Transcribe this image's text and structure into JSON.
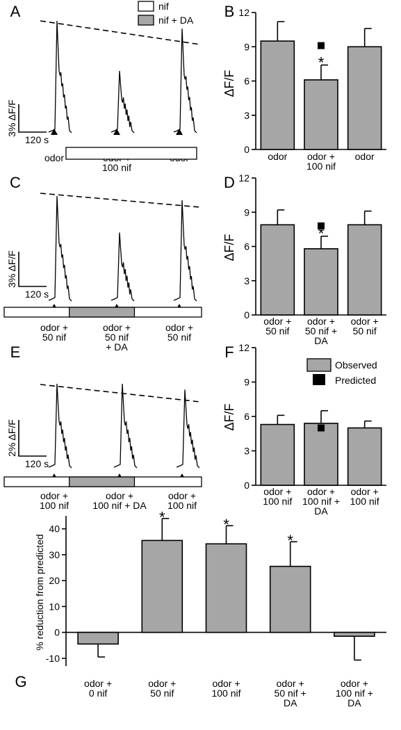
{
  "colors": {
    "bar": "#a6a6a6",
    "axis": "#000000",
    "treatment_fill": "#a6a6a6",
    "predicted": "#000000"
  },
  "legend": {
    "plain_label": "nif",
    "treated_label": "nif + DA"
  },
  "traces": [
    {
      "panel_letter": "A",
      "scale_y": "3% ΔF/F",
      "scale_x": "120 s",
      "labels": [
        [
          "odor"
        ],
        [
          "odor +",
          "100 nif"
        ],
        [
          "odor"
        ]
      ],
      "peaks": [
        100,
        55,
        93
      ],
      "treatment_bar": {
        "kind": "white",
        "spans": "middle"
      }
    },
    {
      "panel_letter": "C",
      "scale_y": "3% ΔF/F",
      "scale_x": "120 s",
      "labels": [
        [
          "odor +",
          "50 nif"
        ],
        [
          "odor +",
          "50 nif",
          "+ DA"
        ],
        [
          "odor +",
          "50 nif"
        ]
      ],
      "peaks": [
        100,
        65,
        96
      ],
      "treatment_bar": {
        "kind": "white-grey-white",
        "spans": "full"
      }
    },
    {
      "panel_letter": "E",
      "scale_y": "2% ΔF/F",
      "scale_x": "120 s",
      "labels": [
        [
          "odor +",
          "100 nif"
        ],
        [
          "odor +",
          "100 nif + DA"
        ],
        [
          "odor +",
          "100 nif"
        ]
      ],
      "peaks": [
        100,
        100,
        93
      ],
      "treatment_bar": {
        "kind": "white-grey-white",
        "spans": "full"
      }
    }
  ],
  "chart_data": [
    {
      "panel_letter": "B",
      "type": "bar",
      "ylabel": "ΔF/F",
      "ylim": [
        0,
        12
      ],
      "yticks": [
        "0",
        "3",
        "6",
        "9",
        "12"
      ],
      "categories": [
        [
          "odor"
        ],
        [
          "odor +",
          "100 nif"
        ],
        [
          "odor"
        ]
      ],
      "values": [
        9.5,
        6.1,
        9.0
      ],
      "errors": [
        1.7,
        1.3,
        1.6
      ],
      "significance": [
        "",
        "*",
        ""
      ],
      "predicted": [
        null,
        9.1,
        null
      ],
      "legend": null
    },
    {
      "panel_letter": "D",
      "type": "bar",
      "ylabel": "ΔF/F",
      "ylim": [
        0,
        12
      ],
      "yticks": [
        "0",
        "3",
        "6",
        "9",
        "12"
      ],
      "categories": [
        [
          "odor +",
          "50 nif"
        ],
        [
          "odor +",
          "50 nif +",
          "DA"
        ],
        [
          "odor +",
          "50 nif"
        ]
      ],
      "values": [
        7.9,
        5.8,
        7.9
      ],
      "errors": [
        1.3,
        1.1,
        1.2
      ],
      "significance": [
        "",
        "*",
        ""
      ],
      "predicted": [
        null,
        7.8,
        null
      ],
      "legend": null
    },
    {
      "panel_letter": "F",
      "type": "bar",
      "ylabel": "ΔF/F",
      "ylim": [
        0,
        12
      ],
      "yticks": [
        "0",
        "3",
        "6",
        "9",
        "12"
      ],
      "categories": [
        [
          "odor +",
          "100 nif"
        ],
        [
          "odor +",
          "100 nif +",
          "DA"
        ],
        [
          "odor +",
          "100 nif"
        ]
      ],
      "values": [
        5.3,
        5.4,
        5.0
      ],
      "errors": [
        0.8,
        1.1,
        0.6
      ],
      "significance": [
        "",
        "",
        ""
      ],
      "predicted": [
        null,
        5.0,
        null
      ],
      "legend": {
        "observed": "Observed",
        "predicted": "Predicted"
      }
    },
    {
      "panel_letter": "G",
      "type": "bar",
      "ylabel": "% reduction from predicted",
      "ylim": [
        -13,
        45
      ],
      "yticks": [
        "-10",
        "0",
        "10",
        "20",
        "30",
        "40"
      ],
      "categories": [
        [
          "odor +",
          "0 nif"
        ],
        [
          "odor +",
          "50 nif"
        ],
        [
          "odor +",
          "100 nif"
        ],
        [
          "odor +",
          "50 nif +",
          "DA"
        ],
        [
          "odor +",
          "100 nif +",
          "DA"
        ]
      ],
      "values": [
        -4.5,
        35.5,
        34.2,
        25.5,
        -1.5
      ],
      "errors": [
        5.0,
        8.5,
        7.0,
        9.5,
        9.2
      ],
      "significance": [
        "",
        "*",
        "*",
        "*",
        ""
      ],
      "predicted": null,
      "legend": null
    }
  ]
}
